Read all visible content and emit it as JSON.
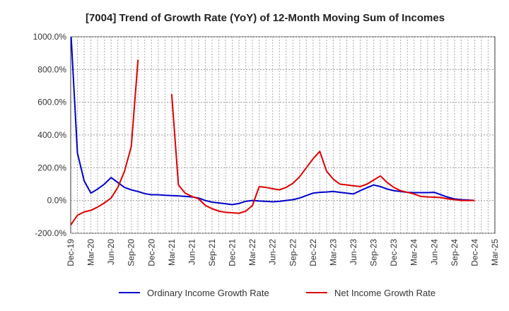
{
  "chart_data": {
    "type": "line",
    "title": "[7004]  Trend of Growth Rate (YoY) of 12-Month Moving Sum of Incomes",
    "xlabel": "",
    "ylabel": "",
    "ylim": [
      -200,
      1000
    ],
    "yticks": [
      -200,
      0,
      200,
      400,
      600,
      800,
      1000
    ],
    "ytick_labels": [
      "-200.0%",
      "0.0%",
      "200.0%",
      "400.0%",
      "600.0%",
      "800.0%",
      "1000.0%"
    ],
    "xtick_labels": [
      "Dec-19",
      "Mar-20",
      "Jun-20",
      "Sep-20",
      "Dec-20",
      "Mar-21",
      "Jun-21",
      "Sep-21",
      "Dec-21",
      "Mar-22",
      "Jun-22",
      "Sep-22",
      "Dec-22",
      "Mar-23",
      "Jun-23",
      "Sep-23",
      "Dec-23",
      "Mar-24",
      "Jun-24",
      "Sep-24",
      "Dec-24",
      "Mar-25"
    ],
    "x_start": "2019-12",
    "grid": true,
    "legend_position": "bottom",
    "series": [
      {
        "name": "Ordinary Income Growth Rate",
        "color": "#0000cc",
        "values": [
          1050,
          290,
          120,
          45,
          70,
          100,
          140,
          110,
          80,
          65,
          55,
          42,
          35,
          35,
          32,
          30,
          28,
          25,
          22,
          15,
          0,
          -10,
          -15,
          -20,
          -25,
          -18,
          -5,
          0,
          -3,
          -5,
          -8,
          -5,
          0,
          5,
          15,
          30,
          45,
          50,
          52,
          55,
          50,
          45,
          40,
          60,
          78,
          95,
          85,
          70,
          60,
          55,
          50,
          48,
          48,
          48,
          50,
          35,
          20,
          10,
          5,
          3,
          0
        ]
      },
      {
        "name": "Net Income Growth Rate",
        "color": "#dd0000",
        "values": [
          -150,
          -90,
          -70,
          -60,
          -40,
          -15,
          15,
          80,
          180,
          330,
          860,
          null,
          null,
          null,
          null,
          650,
          95,
          45,
          25,
          10,
          -30,
          -50,
          -65,
          -72,
          -75,
          -78,
          -65,
          -30,
          85,
          80,
          72,
          65,
          80,
          105,
          145,
          200,
          255,
          300,
          180,
          130,
          100,
          95,
          90,
          85,
          100,
          125,
          150,
          110,
          80,
          60,
          50,
          40,
          25,
          22,
          20,
          18,
          10,
          5,
          0,
          0,
          0
        ]
      }
    ]
  }
}
